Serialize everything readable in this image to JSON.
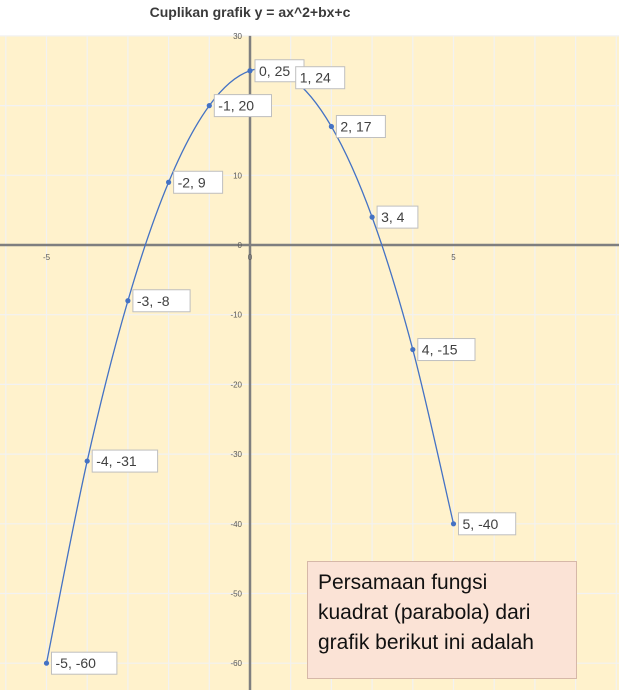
{
  "chart_data": {
    "type": "scatter",
    "title": "Cuplikan grafik y = ax^2+bx+c",
    "xlabel": "",
    "ylabel": "",
    "xlim": [
      -5.2,
      5.2
    ],
    "ylim": [
      -64,
      30
    ],
    "x_ticks": [
      -5,
      0,
      5
    ],
    "y_ticks": [
      30,
      20,
      10,
      0,
      -10,
      -20,
      -30,
      -40,
      -50,
      -60
    ],
    "grid": true,
    "legend": "none",
    "series": [
      {
        "points": [
          {
            "x": -5,
            "y": -60,
            "label": "-5, -60"
          },
          {
            "x": -4,
            "y": -31,
            "label": "-4, -31"
          },
          {
            "x": -3,
            "y": -8,
            "label": "-3, -8"
          },
          {
            "x": -2,
            "y": 9,
            "label": "-2, 9"
          },
          {
            "x": -1,
            "y": 20,
            "label": "-1, 20"
          },
          {
            "x": 0,
            "y": 25,
            "label": "0, 25"
          },
          {
            "x": 1,
            "y": 24,
            "label": "1, 24"
          },
          {
            "x": 2,
            "y": 17,
            "label": "2, 17"
          },
          {
            "x": 3,
            "y": 4,
            "label": "3, 4"
          },
          {
            "x": 4,
            "y": -15,
            "label": "4, -15"
          },
          {
            "x": 5,
            "y": -40,
            "label": "5, -40"
          }
        ]
      }
    ],
    "colors": {
      "plot_background": "#fff2cc",
      "line": "#4472c4",
      "grid": "#f2f2f2",
      "axis": "#7f7f7f"
    }
  },
  "note": {
    "lines": [
      "Persamaan fungsi",
      "kuadrat (parabola) dari",
      "grafik berikut ini adalah"
    ]
  }
}
